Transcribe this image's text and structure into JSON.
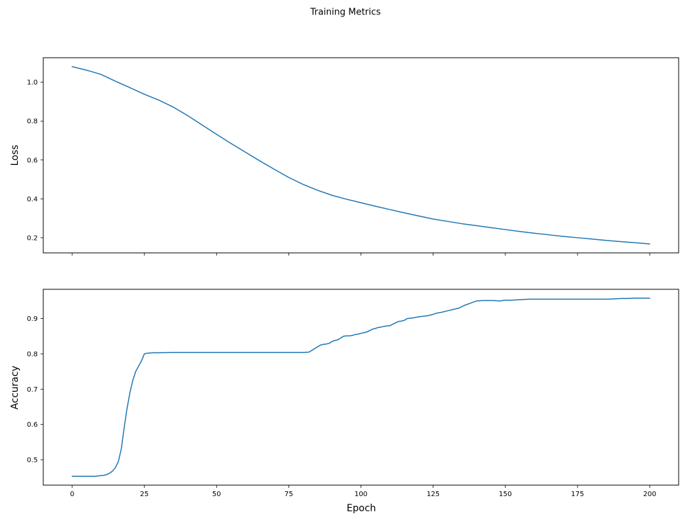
{
  "figure": {
    "suptitle": "Training Metrics",
    "background": "#ffffff"
  },
  "chart_data": [
    {
      "type": "line",
      "name": "loss",
      "title": "",
      "xlabel": "",
      "ylabel": "Loss",
      "line_color": "#1f77b4",
      "xlim": [
        -10,
        210
      ],
      "ylim": [
        0.122,
        1.126
      ],
      "xticks": [
        0,
        25,
        50,
        75,
        100,
        125,
        150,
        175,
        200
      ],
      "yticks": [
        0.2,
        0.4,
        0.6,
        0.8,
        1.0
      ],
      "show_xticklabels": false,
      "grid": false,
      "legend": "none",
      "x": [
        0,
        5,
        10,
        15,
        20,
        25,
        30,
        35,
        40,
        45,
        50,
        55,
        60,
        65,
        70,
        75,
        80,
        85,
        90,
        95,
        100,
        105,
        110,
        115,
        120,
        125,
        130,
        135,
        140,
        145,
        150,
        155,
        160,
        165,
        170,
        175,
        180,
        185,
        190,
        195,
        200
      ],
      "y": [
        1.08,
        1.062,
        1.04,
        1.005,
        0.972,
        0.938,
        0.908,
        0.872,
        0.828,
        0.78,
        0.732,
        0.685,
        0.64,
        0.595,
        0.552,
        0.51,
        0.474,
        0.444,
        0.418,
        0.398,
        0.38,
        0.362,
        0.345,
        0.328,
        0.312,
        0.296,
        0.284,
        0.272,
        0.262,
        0.252,
        0.242,
        0.232,
        0.223,
        0.215,
        0.207,
        0.2,
        0.193,
        0.186,
        0.18,
        0.174,
        0.168
      ]
    },
    {
      "type": "line",
      "name": "accuracy",
      "title": "",
      "xlabel": "Epoch",
      "ylabel": "Accuracy",
      "line_color": "#1f77b4",
      "xlim": [
        -10,
        210
      ],
      "ylim": [
        0.428,
        0.983
      ],
      "xticks": [
        0,
        25,
        50,
        75,
        100,
        125,
        150,
        175,
        200
      ],
      "yticks": [
        0.5,
        0.6,
        0.7,
        0.8,
        0.9
      ],
      "show_xticklabels": true,
      "grid": false,
      "legend": "none",
      "x": [
        0,
        2,
        4,
        6,
        8,
        10,
        11,
        12,
        13,
        14,
        15,
        16,
        17,
        18,
        19,
        20,
        21,
        22,
        23,
        24,
        25,
        26,
        28,
        30,
        35,
        40,
        50,
        60,
        70,
        80,
        82,
        83,
        84,
        85,
        86,
        87,
        88,
        89,
        90,
        91,
        92,
        93,
        94,
        95,
        96,
        97,
        98,
        99,
        100,
        101,
        102,
        103,
        104,
        105,
        106,
        107,
        108,
        109,
        110,
        112,
        113,
        114,
        115,
        116,
        118,
        120,
        121,
        122,
        123,
        124,
        125,
        126,
        128,
        130,
        132,
        134,
        136,
        138,
        140,
        142,
        144,
        146,
        148,
        150,
        152,
        154,
        156,
        158,
        160,
        165,
        170,
        175,
        180,
        185,
        188,
        190,
        192,
        195,
        200
      ],
      "y": [
        0.453,
        0.453,
        0.453,
        0.453,
        0.453,
        0.455,
        0.456,
        0.458,
        0.462,
        0.468,
        0.478,
        0.495,
        0.53,
        0.59,
        0.645,
        0.69,
        0.725,
        0.75,
        0.765,
        0.78,
        0.8,
        0.802,
        0.803,
        0.803,
        0.804,
        0.804,
        0.804,
        0.804,
        0.804,
        0.804,
        0.805,
        0.81,
        0.815,
        0.82,
        0.825,
        0.827,
        0.828,
        0.83,
        0.835,
        0.838,
        0.84,
        0.845,
        0.85,
        0.851,
        0.851,
        0.852,
        0.855,
        0.856,
        0.858,
        0.86,
        0.862,
        0.866,
        0.87,
        0.872,
        0.875,
        0.876,
        0.878,
        0.879,
        0.88,
        0.888,
        0.892,
        0.893,
        0.895,
        0.9,
        0.902,
        0.905,
        0.906,
        0.907,
        0.908,
        0.91,
        0.912,
        0.915,
        0.918,
        0.922,
        0.926,
        0.93,
        0.938,
        0.944,
        0.95,
        0.951,
        0.951,
        0.951,
        0.95,
        0.952,
        0.952,
        0.953,
        0.954,
        0.955,
        0.955,
        0.955,
        0.955,
        0.955,
        0.955,
        0.955,
        0.956,
        0.957,
        0.957,
        0.958,
        0.958
      ]
    }
  ]
}
